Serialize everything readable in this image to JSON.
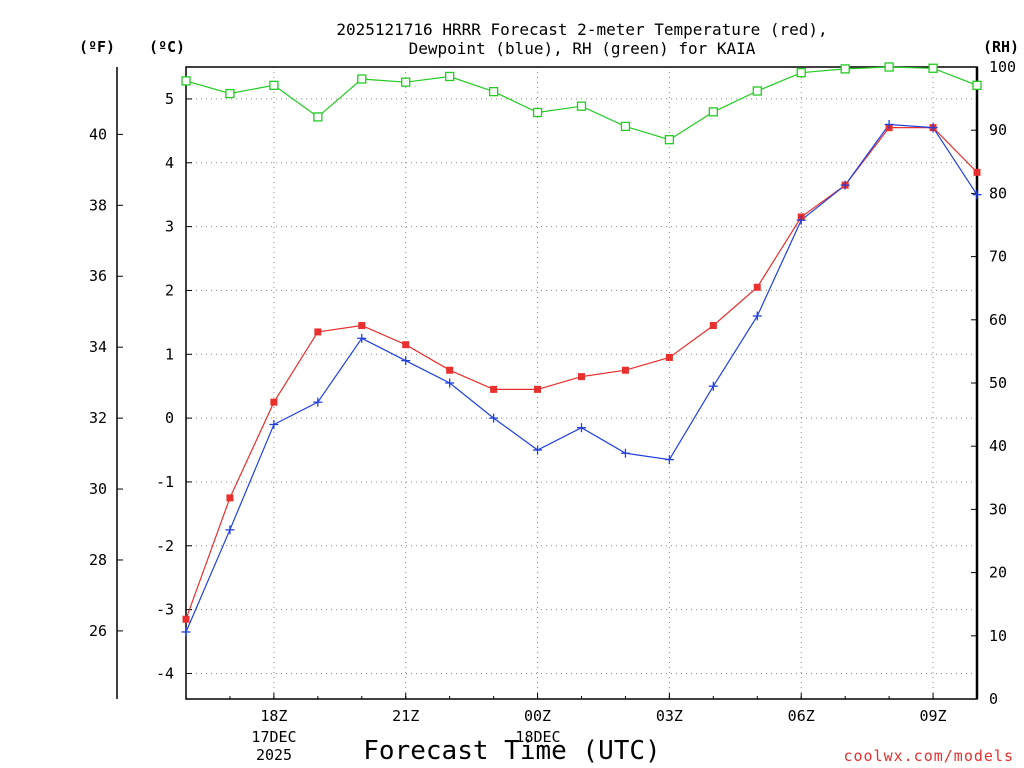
{
  "chart_data": {
    "type": "line",
    "title_line1": "2025121716 HRRR Forecast 2-meter Temperature (red),",
    "title_line2": "Dewpoint (blue), RH (green) for KAIA",
    "xlabel": "Forecast Time (UTC)",
    "credit": "coolwx.com/models",
    "units": {
      "fahrenheit": "(ºF)",
      "celsius": "(ºC)",
      "rh": "(RH)"
    },
    "date_labels": {
      "line1": "17DEC",
      "line2": "2025",
      "mid": "18DEC"
    },
    "hours": [
      16,
      17,
      18,
      19,
      20,
      21,
      22,
      23,
      24,
      25,
      26,
      27,
      28,
      29,
      30,
      31,
      32,
      33,
      34
    ],
    "x_range": [
      16,
      34
    ],
    "x_ticks": [
      {
        "hour": 18,
        "label": "18Z"
      },
      {
        "hour": 21,
        "label": "21Z"
      },
      {
        "hour": 24,
        "label": "00Z"
      },
      {
        "hour": 27,
        "label": "03Z"
      },
      {
        "hour": 30,
        "label": "06Z"
      },
      {
        "hour": 33,
        "label": "09Z"
      }
    ],
    "celsius_axis": {
      "range": [
        -4.4,
        5.5
      ],
      "ticks": [
        -4,
        -3,
        -2,
        -1,
        0,
        1,
        2,
        3,
        4,
        5
      ]
    },
    "fahrenheit_axis": {
      "ticks": [
        26,
        28,
        30,
        32,
        34,
        36,
        38,
        40
      ]
    },
    "rh_axis": {
      "range": [
        0,
        100
      ],
      "ticks": [
        0,
        10,
        20,
        30,
        40,
        50,
        60,
        70,
        80,
        90,
        100
      ]
    },
    "series": [
      {
        "name": "Temperature",
        "color": "#e8302e",
        "marker": "filled-square",
        "values": [
          -3.15,
          -1.25,
          0.25,
          1.35,
          1.45,
          1.15,
          0.75,
          0.45,
          0.45,
          0.65,
          0.75,
          0.95,
          1.45,
          2.05,
          3.15,
          3.65,
          4.55,
          4.55,
          3.85
        ]
      },
      {
        "name": "Dewpoint",
        "color": "#2040e0",
        "marker": "plus",
        "values": [
          -3.35,
          -1.75,
          -0.1,
          0.25,
          1.25,
          0.9,
          0.55,
          0.0,
          -0.5,
          -0.15,
          -0.55,
          -0.65,
          0.5,
          1.6,
          3.1,
          3.65,
          4.6,
          4.55,
          3.5
        ]
      },
      {
        "name": "RH",
        "color": "#22cc22",
        "marker": "open-square",
        "axis": "rh",
        "values": [
          97.8,
          95.8,
          97.1,
          92.1,
          98.1,
          97.6,
          98.5,
          96.1,
          92.8,
          93.8,
          90.6,
          88.5,
          92.9,
          96.2,
          99.1,
          99.7,
          100,
          99.8,
          97.1
        ]
      }
    ]
  }
}
